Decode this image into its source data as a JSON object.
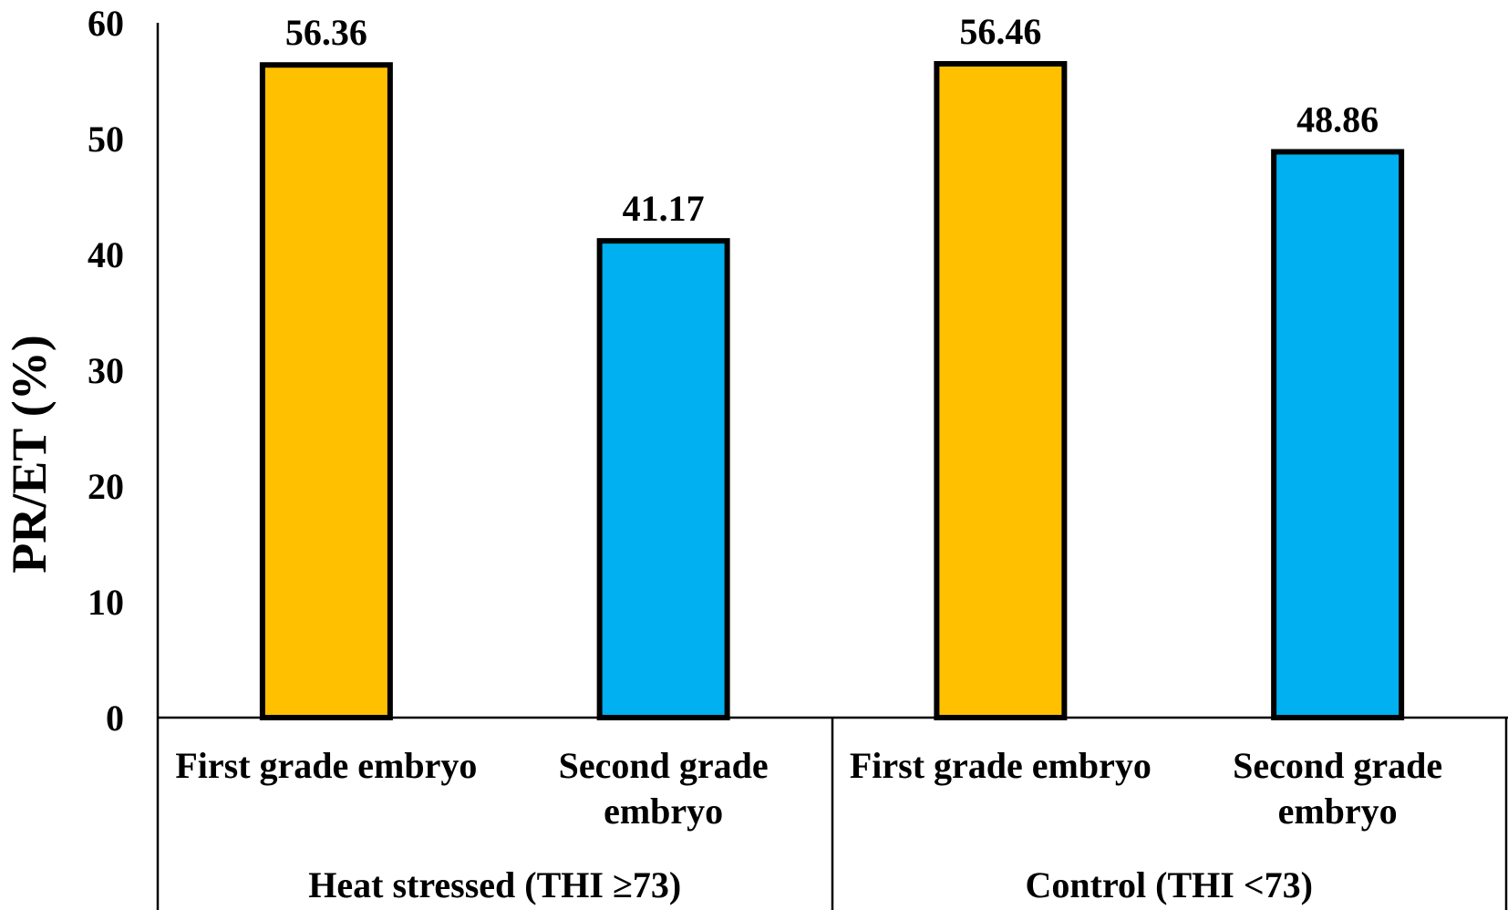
{
  "chart_data": {
    "type": "bar",
    "title": "",
    "ylabel": "PR/ET (%)",
    "xlabel": "",
    "ylim": [
      0,
      60
    ],
    "yticks": [
      0,
      10,
      20,
      30,
      40,
      50,
      60
    ],
    "grid": false,
    "legend": "none",
    "groups": [
      {
        "label": "Heat stressed  (THI ≥73)",
        "categories": [
          {
            "label_lines": [
              "First grade embryo"
            ],
            "value": 56.36,
            "value_label": "56.36",
            "color": "#FFC000"
          },
          {
            "label_lines": [
              "Second grade",
              "embryo"
            ],
            "value": 41.17,
            "value_label": "41.17",
            "color": "#00B0F0"
          }
        ]
      },
      {
        "label": "Control  (THI <73)",
        "categories": [
          {
            "label_lines": [
              "First grade embryo"
            ],
            "value": 56.46,
            "value_label": "56.46",
            "color": "#FFC000"
          },
          {
            "label_lines": [
              "Second grade",
              "embryo"
            ],
            "value": 48.86,
            "value_label": "48.86",
            "color": "#00B0F0"
          }
        ]
      }
    ]
  }
}
